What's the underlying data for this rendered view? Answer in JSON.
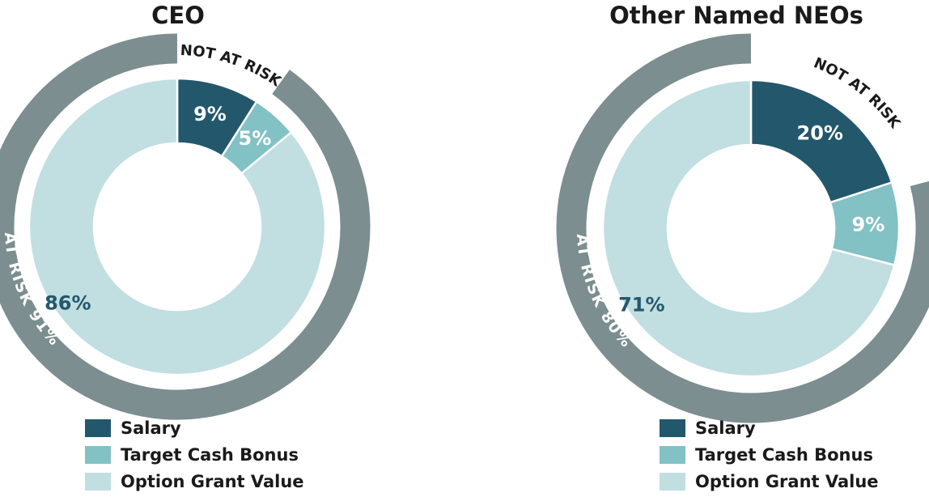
{
  "chart_data": [
    {
      "type": "pie",
      "title": "CEO",
      "categories": [
        "Salary",
        "Target Cash Bonus",
        "Option Grant Value"
      ],
      "values": [
        9,
        5,
        86
      ],
      "value_labels": [
        "9%",
        "5%",
        "86%"
      ],
      "groups": [
        {
          "name": "NOT AT RISK",
          "members": [
            "Salary"
          ],
          "value": 9
        },
        {
          "name": "AT RISK 91%",
          "members": [
            "Target Cash Bonus",
            "Option Grant Value"
          ],
          "value": 91
        }
      ],
      "colors": [
        "#23576c",
        "#82c1c4",
        "#c1dee1"
      ],
      "ring_color": "#7c8e8f",
      "legend_position": "bottom-center"
    },
    {
      "type": "pie",
      "title": "Other Named NEOs",
      "categories": [
        "Salary",
        "Target Cash Bonus",
        "Option Grant Value"
      ],
      "values": [
        20,
        9,
        71
      ],
      "value_labels": [
        "20%",
        "9%",
        "71%"
      ],
      "groups": [
        {
          "name": "NOT AT RISK",
          "members": [
            "Salary"
          ],
          "value": 20
        },
        {
          "name": "AT RISK 80%",
          "members": [
            "Target Cash Bonus",
            "Option Grant Value"
          ],
          "value": 80
        }
      ],
      "colors": [
        "#23576c",
        "#82c1c4",
        "#c1dee1"
      ],
      "ring_color": "#7c8e8f",
      "legend_position": "bottom-center"
    }
  ]
}
